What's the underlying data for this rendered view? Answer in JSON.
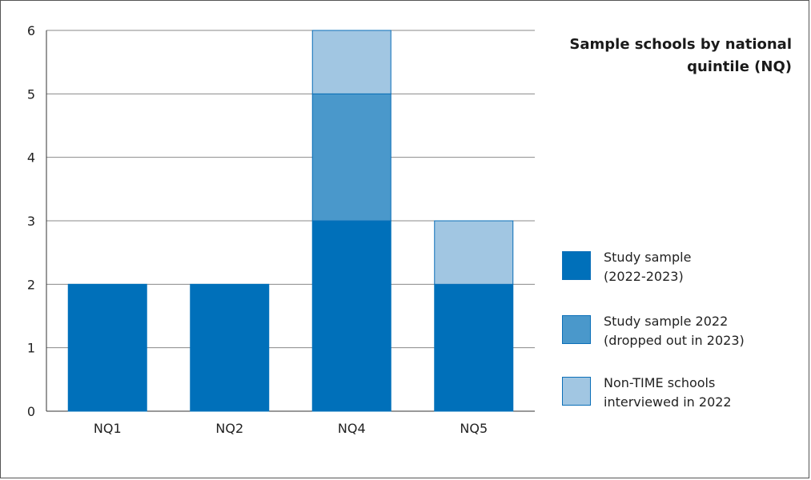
{
  "chart_data": {
    "type": "bar",
    "stacked": true,
    "title": "Sample schools by national quintile (NQ)",
    "categories": [
      "NQ1",
      "NQ2",
      "NQ4",
      "NQ5"
    ],
    "series": [
      {
        "name": "Study sample\n(2022-2023)",
        "values": [
          2,
          2,
          3,
          2
        ],
        "color": "#0070BA"
      },
      {
        "name": "Study sample 2022\n(dropped out in 2023)",
        "values": [
          0,
          0,
          2,
          0
        ],
        "color": "#4A98CB"
      },
      {
        "name": "Non-TIME schools\ninterviewed in 2022",
        "values": [
          0,
          0,
          1,
          1
        ],
        "color": "#A1C6E2"
      }
    ],
    "ylim": [
      0,
      6
    ],
    "yticks": [
      "0",
      "1",
      "2",
      "3",
      "4",
      "5",
      "6"
    ],
    "grid": true,
    "legend_position": "right"
  }
}
